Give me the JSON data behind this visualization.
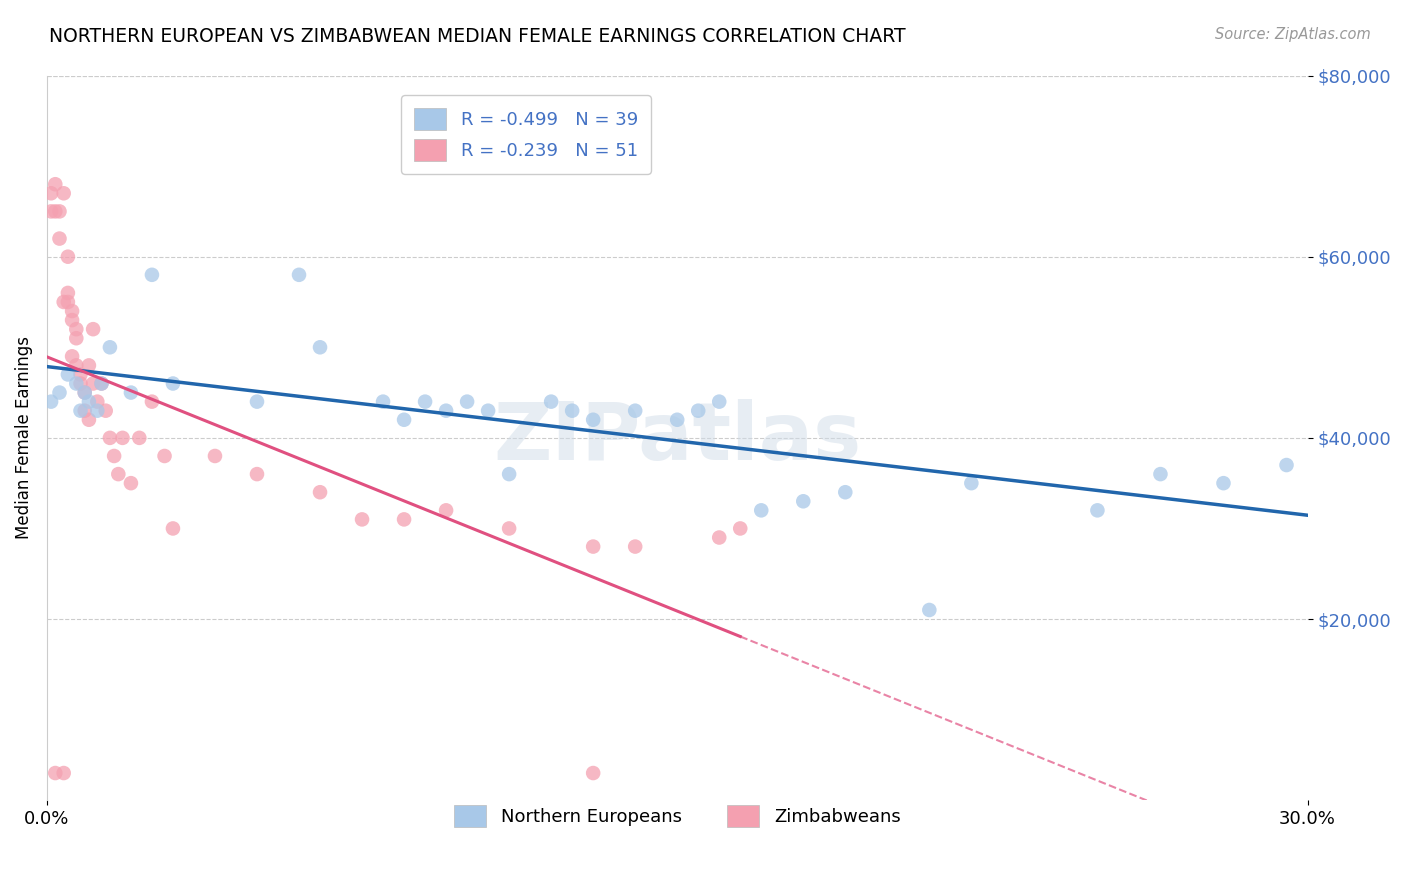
{
  "title": "NORTHERN EUROPEAN VS ZIMBABWEAN MEDIAN FEMALE EARNINGS CORRELATION CHART",
  "source": "Source: ZipAtlas.com",
  "ylabel": "Median Female Earnings",
  "xmin": 0.0,
  "xmax": 0.3,
  "ymin": 0,
  "ymax": 80000,
  "ytick_labels": [
    "$20,000",
    "$40,000",
    "$60,000",
    "$80,000"
  ],
  "ytick_values": [
    20000,
    40000,
    60000,
    80000
  ],
  "legend_blue_label": "R = -0.499   N = 39",
  "legend_pink_label": "R = -0.239   N = 51",
  "legend_bottom_blue": "Northern Europeans",
  "legend_bottom_pink": "Zimbabweans",
  "blue_color": "#a8c8e8",
  "blue_line_color": "#2166ac",
  "pink_color": "#f4a0b0",
  "pink_line_color": "#e05080",
  "pink_line_solid_end": 0.165,
  "watermark_text": "ZIPatlas",
  "blue_points_x": [
    0.001,
    0.003,
    0.005,
    0.007,
    0.008,
    0.009,
    0.01,
    0.012,
    0.013,
    0.015,
    0.02,
    0.025,
    0.03,
    0.05,
    0.06,
    0.065,
    0.08,
    0.085,
    0.09,
    0.095,
    0.1,
    0.105,
    0.11,
    0.12,
    0.125,
    0.13,
    0.14,
    0.15,
    0.155,
    0.16,
    0.17,
    0.18,
    0.19,
    0.21,
    0.22,
    0.25,
    0.265,
    0.28,
    0.295
  ],
  "blue_points_y": [
    44000,
    45000,
    47000,
    46000,
    43000,
    45000,
    44000,
    43000,
    46000,
    50000,
    45000,
    58000,
    46000,
    44000,
    58000,
    50000,
    44000,
    42000,
    44000,
    43000,
    44000,
    43000,
    36000,
    44000,
    43000,
    42000,
    43000,
    42000,
    43000,
    44000,
    32000,
    33000,
    34000,
    21000,
    35000,
    32000,
    36000,
    35000,
    37000
  ],
  "pink_points_x": [
    0.001,
    0.001,
    0.002,
    0.002,
    0.003,
    0.003,
    0.004,
    0.004,
    0.005,
    0.005,
    0.005,
    0.006,
    0.006,
    0.006,
    0.007,
    0.007,
    0.007,
    0.008,
    0.008,
    0.009,
    0.009,
    0.01,
    0.01,
    0.011,
    0.011,
    0.012,
    0.013,
    0.014,
    0.015,
    0.016,
    0.017,
    0.018,
    0.02,
    0.022,
    0.025,
    0.028,
    0.03,
    0.04,
    0.05,
    0.065,
    0.075,
    0.085,
    0.095,
    0.11,
    0.13,
    0.14,
    0.16,
    0.002,
    0.004,
    0.13,
    0.165
  ],
  "pink_points_y": [
    67000,
    65000,
    68000,
    65000,
    65000,
    62000,
    67000,
    55000,
    60000,
    56000,
    55000,
    54000,
    53000,
    49000,
    51000,
    48000,
    52000,
    47000,
    46000,
    45000,
    43000,
    48000,
    42000,
    52000,
    46000,
    44000,
    46000,
    43000,
    40000,
    38000,
    36000,
    40000,
    35000,
    40000,
    44000,
    38000,
    30000,
    38000,
    36000,
    34000,
    31000,
    31000,
    32000,
    30000,
    28000,
    28000,
    29000,
    3000,
    3000,
    3000,
    30000
  ]
}
